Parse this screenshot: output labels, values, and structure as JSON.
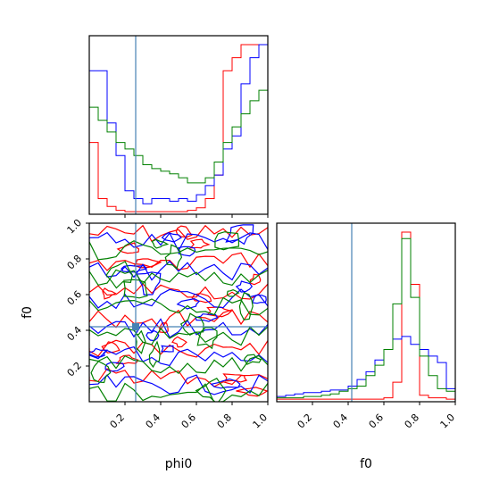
{
  "chart_data": {
    "type": "corner",
    "parameters": [
      "phi0",
      "f0"
    ],
    "truth": {
      "phi0": 0.26,
      "f0": 0.42
    },
    "truth_color": "#4682b4",
    "series": [
      {
        "color": "#ff0000"
      },
      {
        "color": "#0000ff"
      },
      {
        "color": "#008000"
      }
    ],
    "axes": {
      "phi0": {
        "range": [
          0.0,
          1.0
        ],
        "ticks": [
          0.2,
          0.4,
          0.6,
          0.8,
          1.0
        ],
        "tick_labels": [
          "0.2",
          "0.4",
          "0.6",
          "0.8",
          "1.0"
        ],
        "label": "phi0"
      },
      "f0": {
        "range": [
          0.0,
          1.0
        ],
        "ticks": [
          0.2,
          0.4,
          0.6,
          0.8,
          1.0
        ],
        "tick_labels": [
          "0.2",
          "0.4",
          "0.6",
          "0.8",
          "1.0"
        ],
        "label": "f0"
      }
    },
    "hist_phi0": {
      "bins": 20,
      "red": [
        0.55,
        0.12,
        0.06,
        0.03,
        0.02,
        0.02,
        0.02,
        0.02,
        0.02,
        0.02,
        0.02,
        0.03,
        0.05,
        0.12,
        0.3,
        1.1,
        1.2,
        1.3,
        1.3,
        1.3
      ],
      "blue": [
        1.1,
        1.1,
        0.7,
        0.45,
        0.18,
        0.12,
        0.08,
        0.12,
        0.12,
        0.1,
        0.12,
        0.1,
        0.15,
        0.22,
        0.3,
        0.5,
        0.6,
        1.0,
        1.2,
        1.3
      ],
      "green": [
        0.82,
        0.72,
        0.63,
        0.55,
        0.5,
        0.45,
        0.38,
        0.35,
        0.33,
        0.31,
        0.28,
        0.24,
        0.24,
        0.28,
        0.4,
        0.55,
        0.67,
        0.77,
        0.87,
        0.95
      ]
    },
    "hist_f0": {
      "bins": 20,
      "red": [
        0.02,
        0.02,
        0.02,
        0.02,
        0.02,
        0.02,
        0.02,
        0.02,
        0.02,
        0.02,
        0.02,
        0.02,
        0.03,
        0.15,
        1.3,
        0.9,
        0.05,
        0.03,
        0.03,
        0.02
      ],
      "blue": [
        0.04,
        0.05,
        0.06,
        0.07,
        0.07,
        0.08,
        0.09,
        0.09,
        0.12,
        0.17,
        0.23,
        0.32,
        0.4,
        0.48,
        0.5,
        0.44,
        0.4,
        0.35,
        0.3,
        0.1
      ],
      "green": [
        0.03,
        0.03,
        0.03,
        0.04,
        0.04,
        0.05,
        0.06,
        0.08,
        0.1,
        0.12,
        0.2,
        0.28,
        0.4,
        0.75,
        1.25,
        0.8,
        0.35,
        0.2,
        0.1,
        0.08
      ]
    }
  }
}
